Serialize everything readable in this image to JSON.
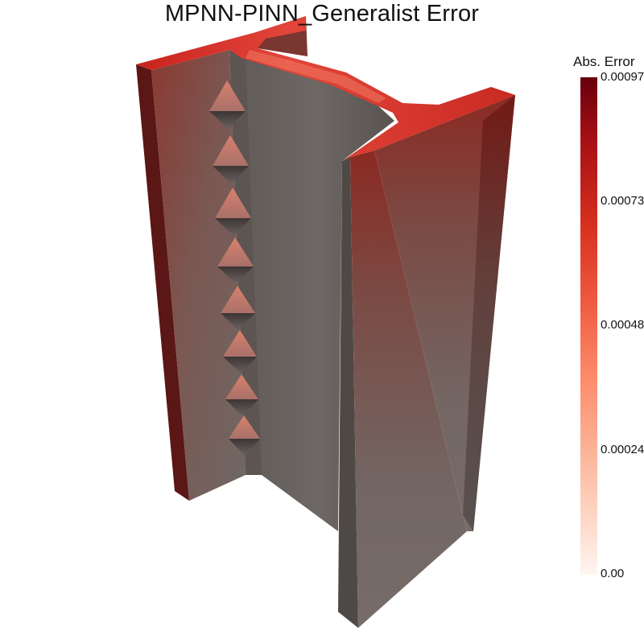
{
  "title": "MPNN-PINN_Generalist Error",
  "legend": {
    "title": "Abs. Error",
    "ticks": [
      "0.00097",
      "0.00073",
      "0.00048",
      "0.00024",
      "0.00"
    ]
  },
  "colors": {
    "high": "#67000d",
    "mid_high": "#e32f27",
    "mid": "#fc8a6a",
    "low": "#fdd4c2",
    "zero": "#fff5f0",
    "base_surface": "#6b6461"
  }
}
